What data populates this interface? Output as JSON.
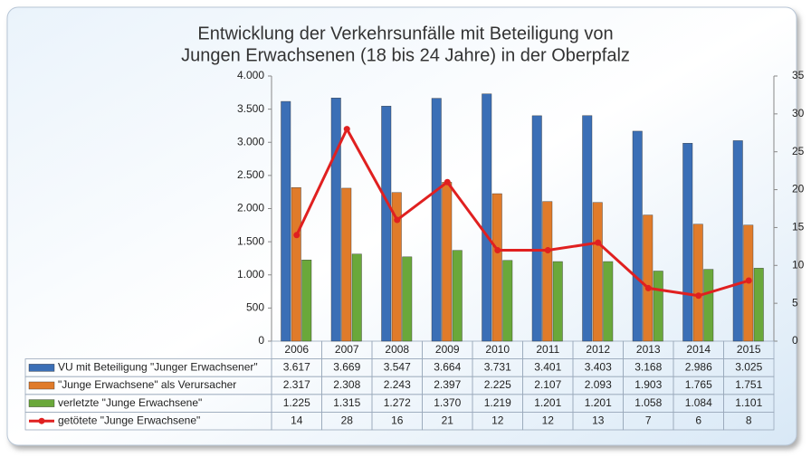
{
  "chart_data": {
    "type": "bar",
    "title": [
      "Entwicklung der Verkehrsunfälle mit Beteiligung von",
      "Jungen Erwachsenen (18 bis 24 Jahre) in der Oberpfalz"
    ],
    "categories": [
      "2006",
      "2007",
      "2008",
      "2009",
      "2010",
      "2011",
      "2012",
      "2013",
      "2014",
      "2015"
    ],
    "series": [
      {
        "name": "VU mit Beteiligung \"Junger Erwachsener\"",
        "color": "#3b6fb6",
        "values": [
          3617,
          3669,
          3547,
          3664,
          3731,
          3401,
          3403,
          3168,
          2986,
          3025
        ],
        "value_labels": [
          "3.617",
          "3.669",
          "3.547",
          "3.664",
          "3.731",
          "3.401",
          "3.403",
          "3.168",
          "2.986",
          "3.025"
        ]
      },
      {
        "name": "\"Junge Erwachsene\" als Verursacher",
        "color": "#e07b2a",
        "values": [
          2317,
          2308,
          2243,
          2397,
          2225,
          2107,
          2093,
          1903,
          1765,
          1751
        ],
        "value_labels": [
          "2.317",
          "2.308",
          "2.243",
          "2.397",
          "2.225",
          "2.107",
          "2.093",
          "1.903",
          "1.765",
          "1.751"
        ]
      },
      {
        "name": "verletzte \"Junge Erwachsene\"",
        "color": "#6aa83a",
        "values": [
          1225,
          1315,
          1272,
          1370,
          1219,
          1201,
          1201,
          1058,
          1084,
          1101
        ],
        "value_labels": [
          "1.225",
          "1.315",
          "1.272",
          "1.370",
          "1.219",
          "1.201",
          "1.201",
          "1.058",
          "1.084",
          "1.101"
        ]
      },
      {
        "name": "getötete  \"Junge Erwachsene\"",
        "color": "#e02020",
        "type": "line",
        "axis": "y2",
        "values": [
          14,
          28,
          16,
          21,
          12,
          12,
          13,
          7,
          6,
          8
        ]
      }
    ],
    "ylim": [
      0,
      4000
    ],
    "yticks": [
      0,
      500,
      {
        "value": 1000,
        "label": "1.000"
      },
      {
        "value": 1500,
        "label": "1.500"
      },
      {
        "value": 2000,
        "label": "2.000"
      },
      {
        "value": 2500,
        "label": "2.500"
      },
      {
        "value": 3000,
        "label": "3.000"
      },
      {
        "value": 3500,
        "label": "3.500"
      },
      {
        "value": 4000,
        "label": "4.000"
      }
    ],
    "y2lim": [
      0,
      35
    ],
    "y2ticks": [
      0,
      5,
      10,
      15,
      20,
      25,
      30,
      35
    ]
  }
}
